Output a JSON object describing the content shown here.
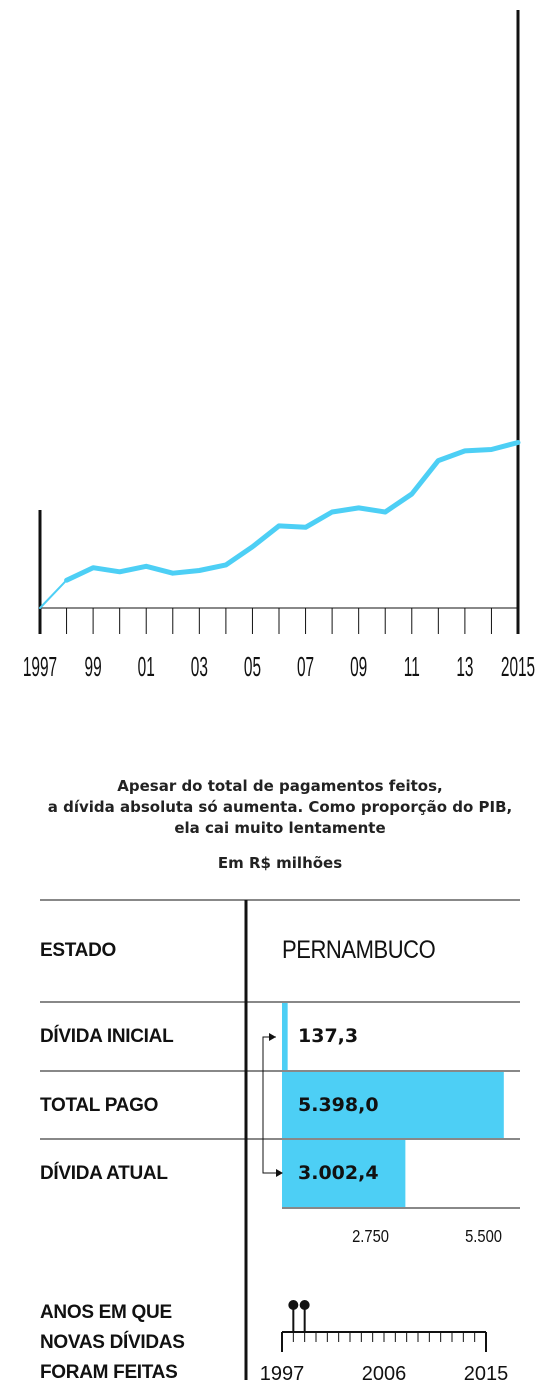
{
  "chart_data": [
    {
      "type": "line",
      "x": [
        1997,
        1998,
        1999,
        2000,
        2001,
        2002,
        2003,
        2004,
        2005,
        2006,
        2007,
        2008,
        2009,
        2010,
        2011,
        2012,
        2013,
        2014,
        2015
      ],
      "x_tick_labels": [
        "1997",
        "99",
        "01",
        "03",
        "05",
        "07",
        "09",
        "11",
        "13",
        "2015"
      ],
      "x_tick_values": [
        1997,
        1999,
        2001,
        2003,
        2005,
        2007,
        2009,
        2011,
        2013,
        2015
      ],
      "series": [
        {
          "values": [
            0,
            1.0,
            1.45,
            1.3,
            1.5,
            1.25,
            1.35,
            1.55,
            2.2,
            2.95,
            2.9,
            3.45,
            3.6,
            3.45,
            4.1,
            5.3,
            5.65,
            5.7,
            5.95
          ]
        }
      ],
      "ylim": [
        0,
        21.5
      ],
      "color": "#4dcff5"
    },
    {
      "type": "bar",
      "title": "Apesar do total de pagamentos feitos,\na dívida absoluta só aumenta. Como proporção do PIB,\nela cai muito lentamente",
      "unit": "Em R$ milhões",
      "header": {
        "label": "ESTADO",
        "value": "PERNAMBUCO"
      },
      "categories": [
        "DÍVIDA INICIAL",
        "TOTAL PAGO",
        "DÍVIDA ATUAL"
      ],
      "values": [
        137.3,
        5398.0,
        3002.4
      ],
      "value_labels": [
        "137,3",
        "5.398,0",
        "3.002,4"
      ],
      "x_ticks": [
        2750,
        5500
      ],
      "x_tick_labels": [
        "2.750",
        "5.500"
      ],
      "xlim": [
        0,
        5500
      ],
      "color": "#4dcff5"
    },
    {
      "type": "scatter",
      "label": "ANOS EM QUE\nNOVAS DÍVIDAS\nFORAM FEITAS",
      "x": [
        1998,
        1999
      ],
      "xlim": [
        1997,
        2015
      ],
      "x_tick_labels": [
        "1997",
        "2006",
        "2015"
      ],
      "x_tick_values": [
        1997,
        2006,
        2015
      ]
    }
  ]
}
